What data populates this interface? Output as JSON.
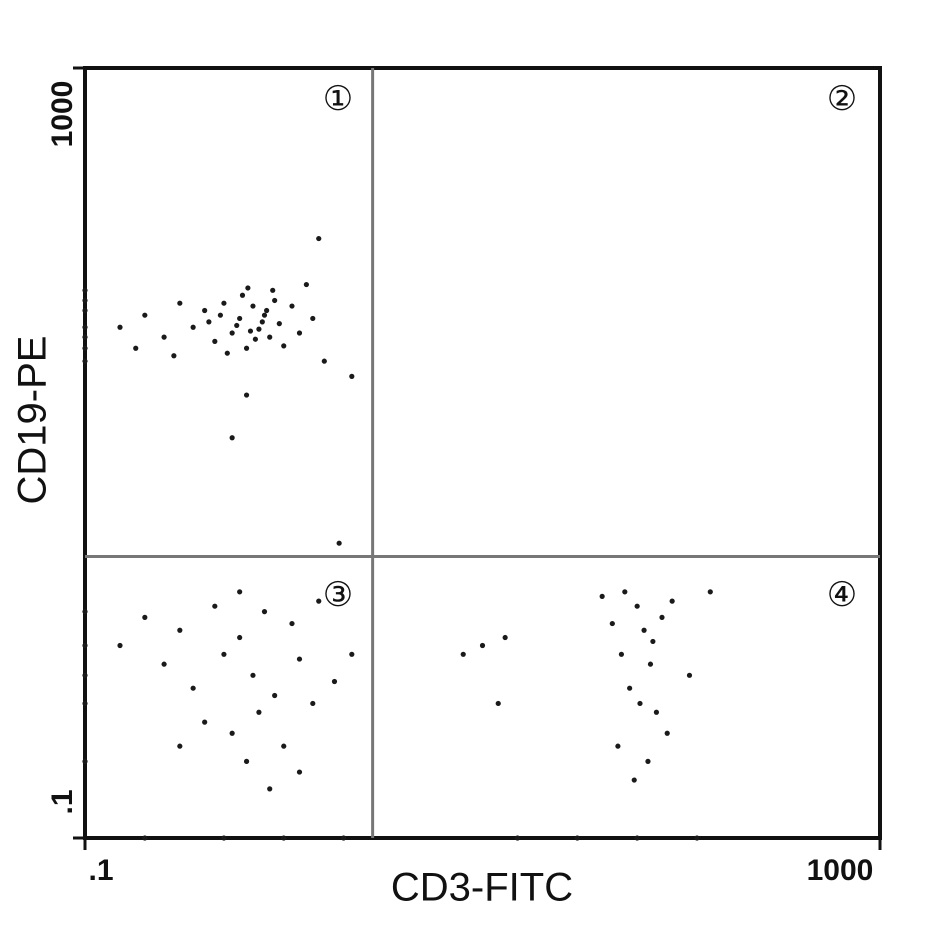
{
  "chart_data": {
    "type": "scatter",
    "xlabel": "CD3-FITC",
    "ylabel": "CD19-PE",
    "annotations": [
      "①",
      "②",
      "③",
      "④"
    ],
    "log_scale": true,
    "color": "#1a1a1a",
    "xlim": [
      0.1,
      1000
    ],
    "ylim": [
      0.1,
      1000
    ],
    "xticks": [
      {
        "value": 0.1,
        "label": ".1"
      },
      1000
    ],
    "yticks": [
      {
        "value": 0.1,
        "label": ".1"
      },
      1000
    ],
    "quadrant_lines": {
      "x": 2.8,
      "y": 2.9
    },
    "x": [
      0.35,
      0.4,
      0.45,
      0.5,
      0.55,
      0.6,
      0.65,
      0.7,
      0.75,
      0.8,
      0.85,
      0.9,
      0.95,
      1.0,
      0.42,
      0.52,
      0.62,
      0.72,
      0.82,
      0.58,
      0.48,
      0.68,
      0.78,
      1.1,
      1.2,
      1.4,
      1.6,
      0.25,
      0.2,
      0.15,
      0.18,
      0.3,
      0.28,
      0.88,
      0.66,
      1.3,
      2.2,
      0.55,
      1.5,
      0.65,
      1.9,
      0.1,
      0.1,
      0.1,
      0.1,
      0.1,
      0.1,
      0.1,
      0.2,
      0.3,
      0.45,
      0.6,
      0.8,
      1.1,
      1.5,
      0.25,
      0.35,
      0.5,
      0.7,
      0.9,
      1.2,
      1.8,
      0.4,
      0.55,
      0.75,
      1.0,
      1.4,
      0.65,
      0.85,
      1.2,
      0.3,
      2.2,
      0.6,
      0.15,
      0.1,
      0.1,
      0.1,
      0.1,
      0.1,
      10,
      13,
      8,
      12,
      40,
      45,
      50,
      55,
      60,
      65,
      70,
      75,
      80,
      48,
      58,
      68,
      52,
      90,
      110,
      140,
      85,
      62,
      72,
      0.2,
      0.5,
      1,
      2,
      15,
      30,
      60,
      120
    ],
    "values": [
      45,
      55,
      38,
      60,
      42,
      50,
      35,
      58,
      44,
      52,
      40,
      62,
      47,
      36,
      48,
      33,
      66,
      39,
      55,
      46,
      52,
      43,
      48,
      58,
      42,
      50,
      30,
      40,
      52,
      45,
      35,
      60,
      32,
      70,
      72,
      75,
      25,
      12,
      130,
      20,
      3.4,
      30,
      40,
      55,
      70,
      45,
      35,
      62,
      1.4,
      1.2,
      1.6,
      1.1,
      1.5,
      1.3,
      1.7,
      0.8,
      0.6,
      0.9,
      0.7,
      0.55,
      0.85,
      0.65,
      0.4,
      0.35,
      0.45,
      0.3,
      0.5,
      0.25,
      0.18,
      0.22,
      0.3,
      0.9,
      1.9,
      1.0,
      0.5,
      1,
      1.5,
      0.25,
      0.7,
      1.0,
      1.1,
      0.9,
      0.5,
      1.8,
      1.3,
      0.9,
      0.6,
      1.6,
      1.2,
      0.8,
      0.45,
      1.4,
      0.3,
      0.2,
      0.25,
      1.9,
      1.7,
      0.7,
      1.9,
      0.35,
      0.5,
      1.05,
      0.1,
      0.1,
      0.1,
      0.1,
      0.1,
      0.1,
      0.1,
      0.1
    ]
  }
}
